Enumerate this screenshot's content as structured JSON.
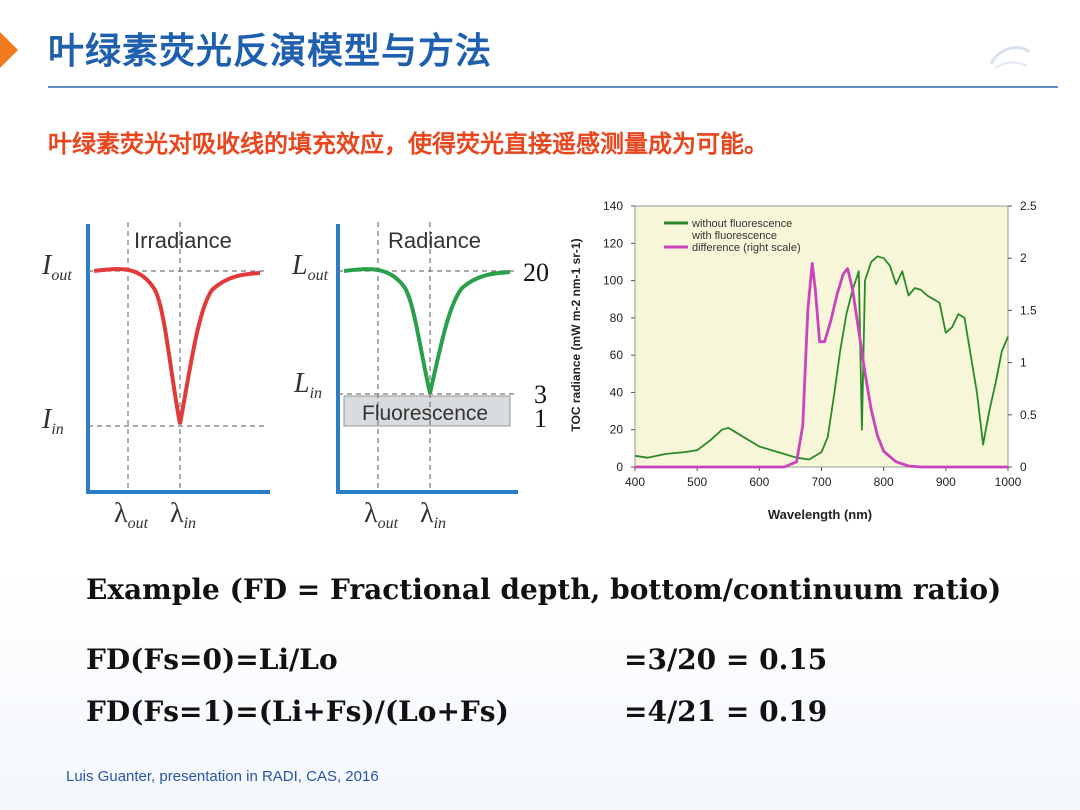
{
  "header": {
    "title": "叶绿素荧光反演模型与方法",
    "subtitle": "叶绿素荧光对吸收线的填充效应，使得荧光直接遥感测量成为可能。"
  },
  "irradiance_panel": {
    "label": "Irradiance",
    "y_top_label": "I",
    "y_top_sub": "out",
    "y_bottom_label": "I",
    "y_bottom_sub": "in",
    "x_label_1": "λ",
    "x_sub_1": "out",
    "x_label_2": "λ",
    "x_sub_2": "in"
  },
  "radiance_panel": {
    "label": "Radiance",
    "y_top_label": "L",
    "y_top_sub": "out",
    "y_bottom_label": "L",
    "y_bottom_sub": "in",
    "fluorescence_label": "Fluorescence",
    "x_label_1": "λ",
    "x_sub_1": "out",
    "x_label_2": "λ",
    "x_sub_2": "in",
    "value_top": "20",
    "value_mid": "3",
    "value_bottom": "1"
  },
  "chart_data": {
    "type": "line",
    "xlabel": "Wavelength (nm)",
    "ylabel": "TOC radiance (mW m-2 nm-1 sr-1)",
    "xlim": [
      400,
      1000
    ],
    "ylim": [
      0,
      140
    ],
    "y2lim": [
      0,
      2.5
    ],
    "x_ticks": [
      "400",
      "500",
      "600",
      "700",
      "800",
      "900",
      "1000"
    ],
    "y_ticks": [
      "0",
      "20",
      "40",
      "60",
      "80",
      "100",
      "120",
      "140"
    ],
    "y2_ticks": [
      "0",
      "0.5",
      "1",
      "1.5",
      "2",
      "2.5"
    ],
    "legend_position": "top-left",
    "background": "#f8f6d8",
    "series": [
      {
        "name": "without fluorescence",
        "color": "#2a8a2a",
        "axis": "left",
        "points": [
          [
            400,
            6
          ],
          [
            420,
            5
          ],
          [
            450,
            7
          ],
          [
            480,
            8
          ],
          [
            500,
            9
          ],
          [
            520,
            14
          ],
          [
            540,
            20
          ],
          [
            550,
            21
          ],
          [
            570,
            17
          ],
          [
            600,
            11
          ],
          [
            630,
            8
          ],
          [
            660,
            5
          ],
          [
            680,
            4
          ],
          [
            690,
            6
          ],
          [
            700,
            8
          ],
          [
            710,
            16
          ],
          [
            720,
            38
          ],
          [
            730,
            62
          ],
          [
            740,
            82
          ],
          [
            750,
            95
          ],
          [
            760,
            105
          ],
          [
            765,
            20
          ],
          [
            770,
            100
          ],
          [
            780,
            110
          ],
          [
            790,
            113
          ],
          [
            800,
            112
          ],
          [
            810,
            108
          ],
          [
            820,
            98
          ],
          [
            830,
            105
          ],
          [
            840,
            92
          ],
          [
            850,
            96
          ],
          [
            860,
            95
          ],
          [
            870,
            92
          ],
          [
            880,
            90
          ],
          [
            890,
            88
          ],
          [
            900,
            72
          ],
          [
            910,
            75
          ],
          [
            920,
            82
          ],
          [
            930,
            80
          ],
          [
            940,
            60
          ],
          [
            950,
            40
          ],
          [
            960,
            12
          ],
          [
            970,
            30
          ],
          [
            980,
            45
          ],
          [
            990,
            62
          ],
          [
            1000,
            70
          ]
        ]
      },
      {
        "name": "with fluorescence",
        "color": "#2a8a2a",
        "axis": "left",
        "points": []
      },
      {
        "name": "difference (right scale)",
        "color": "#cc44bb",
        "axis": "right",
        "points": [
          [
            400,
            0
          ],
          [
            640,
            0
          ],
          [
            660,
            0.05
          ],
          [
            670,
            0.4
          ],
          [
            678,
            1.5
          ],
          [
            685,
            1.95
          ],
          [
            690,
            1.7
          ],
          [
            697,
            1.2
          ],
          [
            705,
            1.2
          ],
          [
            715,
            1.4
          ],
          [
            725,
            1.65
          ],
          [
            735,
            1.85
          ],
          [
            742,
            1.9
          ],
          [
            750,
            1.7
          ],
          [
            760,
            1.3
          ],
          [
            770,
            0.9
          ],
          [
            780,
            0.55
          ],
          [
            790,
            0.3
          ],
          [
            800,
            0.15
          ],
          [
            820,
            0.05
          ],
          [
            840,
            0.01
          ],
          [
            860,
            0
          ],
          [
            1000,
            0
          ]
        ]
      }
    ]
  },
  "example": {
    "heading": "Example (FD = Fractional depth, bottom/continuum ratio)",
    "eq1_left": "FD(Fs=0)=Li/Lo",
    "eq1_right": "=3/20  = 0.15",
    "eq2_left": "FD(Fs=1)=(Li+Fs)/(Lo+Fs)",
    "eq2_right": "=4/21  = 0.19"
  },
  "footer": {
    "credit": "Luis Guanter, presentation in RADI, CAS, 2016"
  },
  "colors": {
    "title": "#1f5fb0",
    "subtitle": "#e8461e",
    "irradiance_curve": "#e03a3a",
    "radiance_curve": "#2aa04a",
    "axis": "#2a7ec8"
  }
}
